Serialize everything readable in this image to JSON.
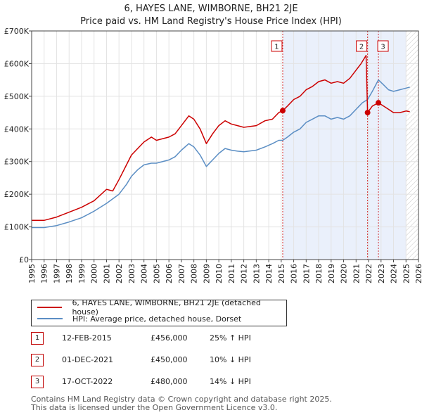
{
  "chart_data": {
    "type": "line",
    "title": "6, HAYES LANE, WIMBORNE, BH21 2JE",
    "subtitle": "Price paid vs. HM Land Registry's House Price Index (HPI)",
    "xlim": [
      1995,
      2026
    ],
    "ylim": [
      0,
      700000
    ],
    "yticks": [
      {
        "value": 0,
        "label": "£0"
      },
      {
        "value": 100000,
        "label": "£100K"
      },
      {
        "value": 200000,
        "label": "£200K"
      },
      {
        "value": 300000,
        "label": "£300K"
      },
      {
        "value": 400000,
        "label": "£400K"
      },
      {
        "value": 500000,
        "label": "£500K"
      },
      {
        "value": 600000,
        "label": "£600K"
      },
      {
        "value": 700000,
        "label": "£700K"
      }
    ],
    "xticks": [
      "1995",
      "1996",
      "1997",
      "1998",
      "1999",
      "2000",
      "2001",
      "2002",
      "2003",
      "2004",
      "2005",
      "2006",
      "2007",
      "2008",
      "2009",
      "2010",
      "2011",
      "2012",
      "2013",
      "2014",
      "2015",
      "2016",
      "2017",
      "2018",
      "2019",
      "2020",
      "2021",
      "2022",
      "2023",
      "2024",
      "2025",
      "2026"
    ],
    "shade_start": 2015.12,
    "hatch_start": 2025.0,
    "series": [
      {
        "name": "6, HAYES LANE, WIMBORNE, BH21 2JE (detached house)",
        "color": "#cc0000",
        "points": [
          [
            1995.0,
            120000
          ],
          [
            1996.0,
            120000
          ],
          [
            1997.0,
            130000
          ],
          [
            1998.0,
            145000
          ],
          [
            1999.0,
            160000
          ],
          [
            2000.0,
            180000
          ],
          [
            2001.0,
            215000
          ],
          [
            2001.5,
            210000
          ],
          [
            2002.0,
            245000
          ],
          [
            2002.6,
            290000
          ],
          [
            2003.0,
            320000
          ],
          [
            2003.5,
            340000
          ],
          [
            2004.0,
            360000
          ],
          [
            2004.6,
            375000
          ],
          [
            2005.0,
            365000
          ],
          [
            2006.0,
            375000
          ],
          [
            2006.5,
            385000
          ],
          [
            2007.0,
            410000
          ],
          [
            2007.6,
            440000
          ],
          [
            2008.0,
            430000
          ],
          [
            2008.5,
            400000
          ],
          [
            2009.0,
            355000
          ],
          [
            2009.5,
            385000
          ],
          [
            2010.0,
            410000
          ],
          [
            2010.5,
            425000
          ],
          [
            2011.0,
            415000
          ],
          [
            2011.5,
            410000
          ],
          [
            2012.0,
            405000
          ],
          [
            2013.0,
            410000
          ],
          [
            2013.7,
            425000
          ],
          [
            2014.3,
            430000
          ],
          [
            2014.8,
            450000
          ],
          [
            2015.12,
            456000
          ],
          [
            2015.5,
            470000
          ],
          [
            2016.0,
            490000
          ],
          [
            2016.5,
            500000
          ],
          [
            2017.0,
            520000
          ],
          [
            2017.5,
            530000
          ],
          [
            2018.0,
            545000
          ],
          [
            2018.5,
            550000
          ],
          [
            2019.0,
            540000
          ],
          [
            2019.5,
            545000
          ],
          [
            2020.0,
            540000
          ],
          [
            2020.5,
            555000
          ],
          [
            2021.0,
            580000
          ],
          [
            2021.4,
            600000
          ],
          [
            2021.8,
            625000
          ],
          [
            2021.92,
            450000
          ],
          [
            2022.3,
            470000
          ],
          [
            2022.79,
            480000
          ],
          [
            2023.2,
            470000
          ],
          [
            2023.6,
            460000
          ],
          [
            2024.0,
            450000
          ],
          [
            2024.5,
            450000
          ],
          [
            2025.0,
            455000
          ],
          [
            2025.3,
            453000
          ]
        ]
      },
      {
        "name": "HPI: Average price, detached house, Dorset",
        "color": "#5b8ec4",
        "points": [
          [
            1995.0,
            98000
          ],
          [
            1996.0,
            98000
          ],
          [
            1997.0,
            104000
          ],
          [
            1998.0,
            115000
          ],
          [
            1999.0,
            128000
          ],
          [
            2000.0,
            148000
          ],
          [
            2001.0,
            172000
          ],
          [
            2002.0,
            200000
          ],
          [
            2002.6,
            230000
          ],
          [
            2003.0,
            255000
          ],
          [
            2003.5,
            275000
          ],
          [
            2004.0,
            290000
          ],
          [
            2004.6,
            295000
          ],
          [
            2005.0,
            295000
          ],
          [
            2006.0,
            305000
          ],
          [
            2006.5,
            315000
          ],
          [
            2007.0,
            335000
          ],
          [
            2007.6,
            355000
          ],
          [
            2008.0,
            345000
          ],
          [
            2008.5,
            320000
          ],
          [
            2009.0,
            285000
          ],
          [
            2009.5,
            305000
          ],
          [
            2010.0,
            325000
          ],
          [
            2010.5,
            340000
          ],
          [
            2011.0,
            335000
          ],
          [
            2011.5,
            332000
          ],
          [
            2012.0,
            330000
          ],
          [
            2013.0,
            335000
          ],
          [
            2013.7,
            345000
          ],
          [
            2014.3,
            355000
          ],
          [
            2014.8,
            365000
          ],
          [
            2015.12,
            365000
          ],
          [
            2015.5,
            375000
          ],
          [
            2016.0,
            390000
          ],
          [
            2016.5,
            400000
          ],
          [
            2017.0,
            420000
          ],
          [
            2017.5,
            430000
          ],
          [
            2018.0,
            440000
          ],
          [
            2018.5,
            440000
          ],
          [
            2019.0,
            430000
          ],
          [
            2019.5,
            435000
          ],
          [
            2020.0,
            430000
          ],
          [
            2020.5,
            440000
          ],
          [
            2021.0,
            460000
          ],
          [
            2021.5,
            480000
          ],
          [
            2021.92,
            490000
          ],
          [
            2022.3,
            515000
          ],
          [
            2022.79,
            550000
          ],
          [
            2023.2,
            535000
          ],
          [
            2023.6,
            520000
          ],
          [
            2024.0,
            515000
          ],
          [
            2024.5,
            520000
          ],
          [
            2025.0,
            525000
          ],
          [
            2025.3,
            528000
          ]
        ]
      }
    ],
    "transactions": [
      {
        "id": "1",
        "date": "12-FEB-2015",
        "x": 2015.12,
        "price_label": "£456,000",
        "price": 456000,
        "hpi": "25% ↑ HPI"
      },
      {
        "id": "2",
        "date": "01-DEC-2021",
        "x": 2021.92,
        "price_label": "£450,000",
        "price": 450000,
        "hpi": "10% ↓ HPI"
      },
      {
        "id": "3",
        "date": "17-OCT-2022",
        "x": 2022.79,
        "price_label": "£480,000",
        "price": 480000,
        "hpi": "14% ↓ HPI"
      }
    ]
  },
  "footer": {
    "line1": "Contains HM Land Registry data © Crown copyright and database right 2025.",
    "line2": "This data is licensed under the Open Government Licence v3.0."
  }
}
